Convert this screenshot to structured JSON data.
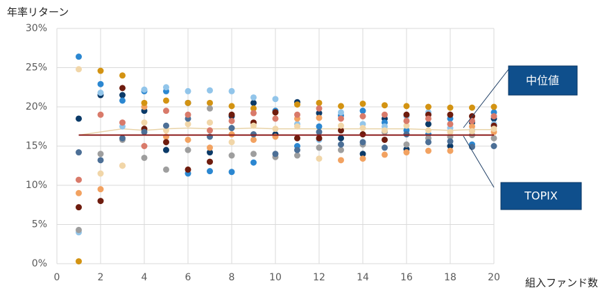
{
  "chart_data": {
    "type": "scatter",
    "y_axis_label": "年率リターン",
    "x_axis_label": "組入ファンド数",
    "xlim": [
      0,
      20
    ],
    "xticks": [
      0,
      2,
      4,
      6,
      8,
      10,
      12,
      14,
      16,
      18,
      20
    ],
    "ylim": [
      0,
      30
    ],
    "yticks": [
      {
        "value": 0,
        "label": "0%"
      },
      {
        "value": 5,
        "label": "5%"
      },
      {
        "value": 10,
        "label": "10%"
      },
      {
        "value": 15,
        "label": "15%"
      },
      {
        "value": 20,
        "label": "20%"
      },
      {
        "value": 25,
        "label": "25%"
      },
      {
        "value": 30,
        "label": "30%"
      }
    ],
    "grid": true,
    "x": [
      1,
      2,
      3,
      4,
      5,
      6,
      7,
      8,
      9,
      10,
      11,
      12,
      13,
      14,
      15,
      16,
      17,
      18,
      19,
      20
    ],
    "series": [
      {
        "color": "#0b3a68",
        "values": [
          18.5,
          21.5,
          21.5,
          19.5,
          14.5,
          20.5,
          14.2,
          18.8,
          20.5,
          16.5,
          20.6,
          19.2,
          16.0,
          14.0,
          18.5,
          14.6,
          17.8,
          15.0,
          18.0,
          18.5
        ]
      },
      {
        "color": "#2b87d1",
        "values": [
          26.4,
          22.9,
          20.8,
          22.0,
          22.0,
          11.5,
          11.8,
          11.7,
          12.9,
          19.5,
          15.0,
          17.5,
          18.9,
          19.5,
          18.0,
          17.0,
          16.5,
          18.5,
          15.2,
          19.3
        ]
      },
      {
        "color": "#92c5ea",
        "values": [
          4.0,
          21.8,
          17.5,
          22.2,
          22.5,
          22.0,
          22.1,
          22.0,
          21.2,
          21.0,
          17.8,
          15.8,
          19.3,
          17.8,
          17.5,
          18.8,
          19.3,
          17.3,
          17.0,
          17.8
        ]
      },
      {
        "color": "#f2a261",
        "values": [
          9.0,
          9.5,
          12.5,
          20.0,
          16.2,
          15.8,
          14.8,
          16.5,
          15.8,
          16.2,
          18.5,
          18.6,
          13.2,
          13.4,
          13.9,
          14.2,
          14.4,
          14.4,
          17.5,
          16.8
        ]
      },
      {
        "color": "#d39312",
        "values": [
          0.3,
          24.6,
          24.0,
          20.5,
          20.8,
          20.5,
          20.5,
          20.1,
          19.8,
          19.3,
          20.3,
          20.5,
          20.1,
          20.4,
          20.2,
          20.1,
          20.0,
          19.9,
          19.9,
          20.0
        ]
      },
      {
        "color": "#6e1c0e",
        "values": [
          7.2,
          8.0,
          22.4,
          17.2,
          15.5,
          12.0,
          13.0,
          19.0,
          18.0,
          19.3,
          16.0,
          16.0,
          17.0,
          16.5,
          15.8,
          19.0,
          19.0,
          19.0,
          18.8,
          17.6
        ]
      },
      {
        "color": "#9e9e9e",
        "values": [
          4.3,
          14.0,
          15.8,
          13.5,
          12.0,
          14.5,
          19.8,
          13.8,
          14.0,
          13.6,
          13.8,
          14.8,
          14.5,
          15.2,
          16.8,
          15.2,
          16.0,
          16.2,
          16.4,
          16.0
        ]
      },
      {
        "color": "#f1d6a8",
        "values": [
          24.8,
          11.5,
          12.5,
          18.0,
          17.0,
          17.8,
          18.0,
          15.5,
          17.6,
          17.2,
          17.5,
          13.4,
          17.6,
          17.3,
          17.0,
          17.6,
          17.0,
          16.8,
          16.9,
          17.2
        ]
      },
      {
        "color": "#4c6f96",
        "values": [
          14.2,
          13.2,
          16.0,
          16.8,
          17.6,
          18.5,
          16.2,
          17.3,
          16.5,
          14.0,
          14.5,
          16.8,
          15.2,
          15.5,
          14.8,
          16.5,
          15.5,
          15.6,
          14.9,
          15.0
        ]
      },
      {
        "color": "#d97a6a",
        "values": [
          10.7,
          19.0,
          18.0,
          15.0,
          19.5,
          19.0,
          17.0,
          18.2,
          19.2,
          18.5,
          19.0,
          19.8,
          18.5,
          18.8,
          19.0,
          18.2,
          18.5,
          17.8,
          18.2,
          18.8
        ]
      }
    ],
    "lines": [
      {
        "name": "中位値",
        "color": "#e8d3a8",
        "values": [
          16.4,
          16.8,
          17.2,
          17.0,
          17.2,
          17.3,
          17.2,
          17.2,
          17.3,
          17.2,
          17.2,
          17.2,
          17.2,
          17.2,
          17.2,
          17.2,
          17.1,
          17.0,
          17.1,
          17.1
        ]
      },
      {
        "name": "TOPIX",
        "color": "#8b1a1a",
        "values": [
          16.4,
          16.4,
          16.4,
          16.4,
          16.4,
          16.4,
          16.4,
          16.4,
          16.4,
          16.4,
          16.4,
          16.4,
          16.4,
          16.4,
          16.4,
          16.4,
          16.4,
          16.4,
          16.4,
          16.4
        ]
      }
    ]
  }
}
